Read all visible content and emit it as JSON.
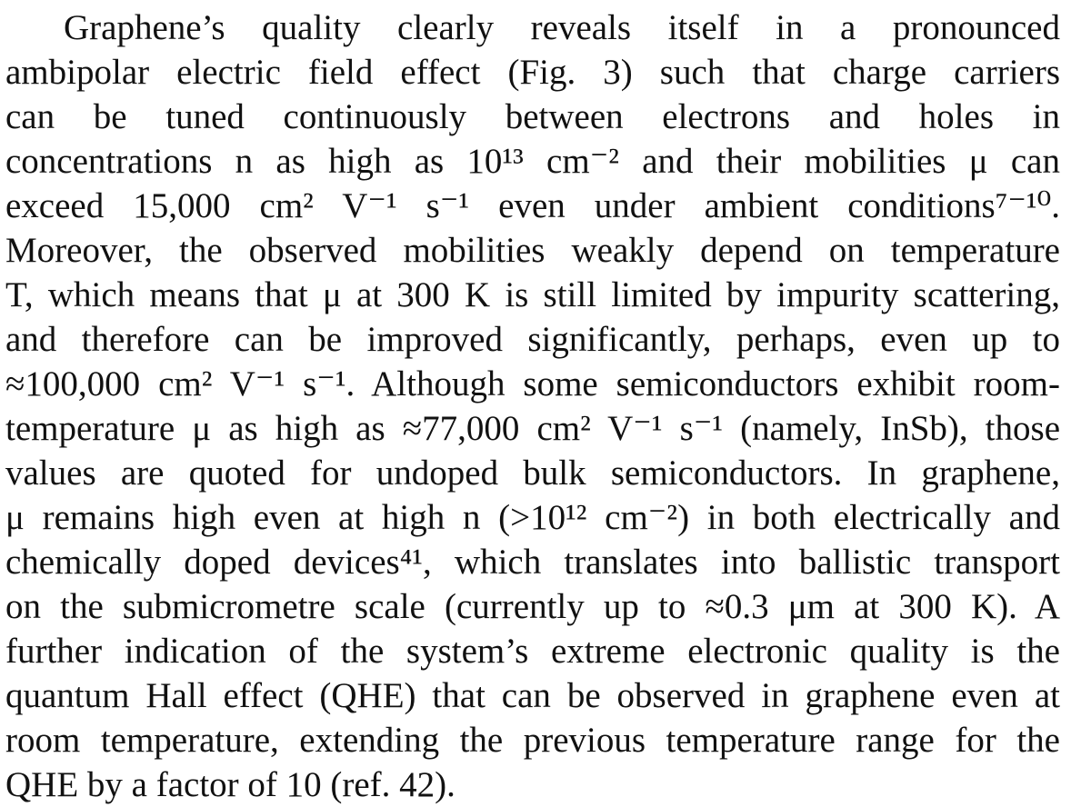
{
  "paragraph": {
    "lines": [
      "Graphene’s quality clearly reveals itself in a pronounced",
      "ambipolar electric field effect (Fig. 3) such that charge carriers",
      "can be tuned continuously between electrons and holes in",
      "concentrations n as high as 10¹³ cm⁻² and their mobilities μ can",
      "exceed 15,000 cm² V⁻¹ s⁻¹ even under ambient conditions⁷⁻¹⁰.",
      "Moreover, the observed mobilities weakly depend on temperature",
      "T, which means that μ at 300 K is still limited by impurity scattering,",
      "and therefore can be improved significantly, perhaps, even up to",
      "≈100,000 cm² V⁻¹ s⁻¹. Although some semiconductors exhibit room-",
      "temperature μ as high as ≈77,000 cm² V⁻¹ s⁻¹ (namely, InSb), those",
      "values are quoted for undoped bulk semiconductors. In graphene,",
      "μ remains high even at high n (>10¹² cm⁻²) in both electrically and",
      "chemically doped devices⁴¹, which translates into ballistic transport",
      "on the submicrometre scale (currently up to ≈0.3 μm at 300 K). A",
      "further indication of the system’s extreme electronic quality is the",
      "quantum Hall effect (QHE) that can be observed in graphene even at",
      "room temperature, extending the previous temperature range for the",
      "QHE by a factor of 10 (ref. 42)."
    ]
  }
}
